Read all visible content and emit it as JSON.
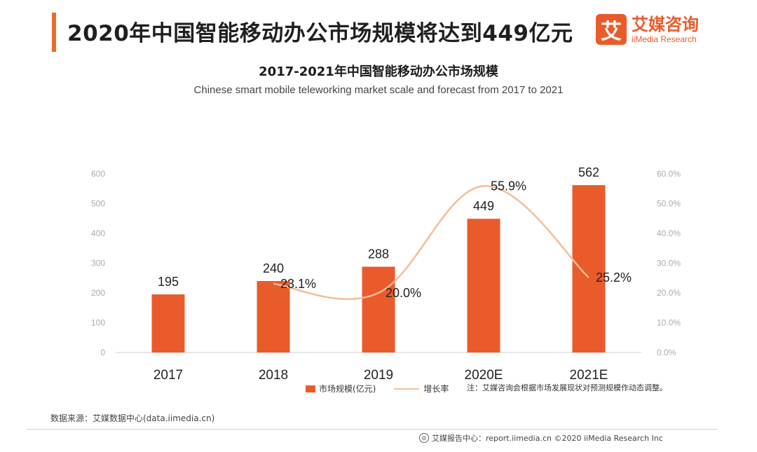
{
  "header": {
    "headline": "2020年中国智能移动办公市场规模将达到449亿元",
    "logo_mark": "艾",
    "logo_cn": "艾媒咨询",
    "logo_en": "iiMedia Research"
  },
  "chart_data": {
    "type": "bar",
    "title": "2017-2021年中国智能移动办公市场规模",
    "subtitle": "Chinese smart mobile teleworking market scale and forecast from 2017 to 2021",
    "categories": [
      "2017",
      "2018",
      "2019",
      "2020E",
      "2021E"
    ],
    "series": [
      {
        "name": "市场规模(亿元)",
        "type": "bar",
        "axis": "left",
        "values": [
          195,
          240,
          288,
          449,
          562
        ],
        "labels": [
          "195",
          "240",
          "288",
          "449",
          "562"
        ]
      },
      {
        "name": "增长率",
        "type": "line",
        "axis": "right",
        "values": [
          null,
          23.1,
          20.0,
          55.9,
          25.2
        ],
        "labels": [
          "",
          "23.1%",
          "20.0%",
          "55.9%",
          "25.2%"
        ]
      }
    ],
    "ylim": [
      0,
      600
    ],
    "yticks": [
      "0",
      "100",
      "200",
      "300",
      "400",
      "500",
      "600"
    ],
    "y2lim": [
      0,
      60
    ],
    "y2ticks": [
      "0.0%",
      "10.0%",
      "20.0%",
      "30.0%",
      "40.0%",
      "50.0%",
      "60.0%"
    ],
    "colors": {
      "bar": "#ea5b2b",
      "line": "#f3be98",
      "axis_text": "#aaaaaa"
    },
    "legend_position": "bottom"
  },
  "legend": {
    "bar_label": "市场规模(亿元)",
    "line_label": "增长率"
  },
  "note": "注：艾媒咨询会根据市场发展现状对预测规模作动态调整。",
  "source": "数据来源：艾媒数据中心(data.iimedia.cn)",
  "footer": "艾媒报告中心：report.iimedia.cn  ©2020  iiMedia Research Inc"
}
